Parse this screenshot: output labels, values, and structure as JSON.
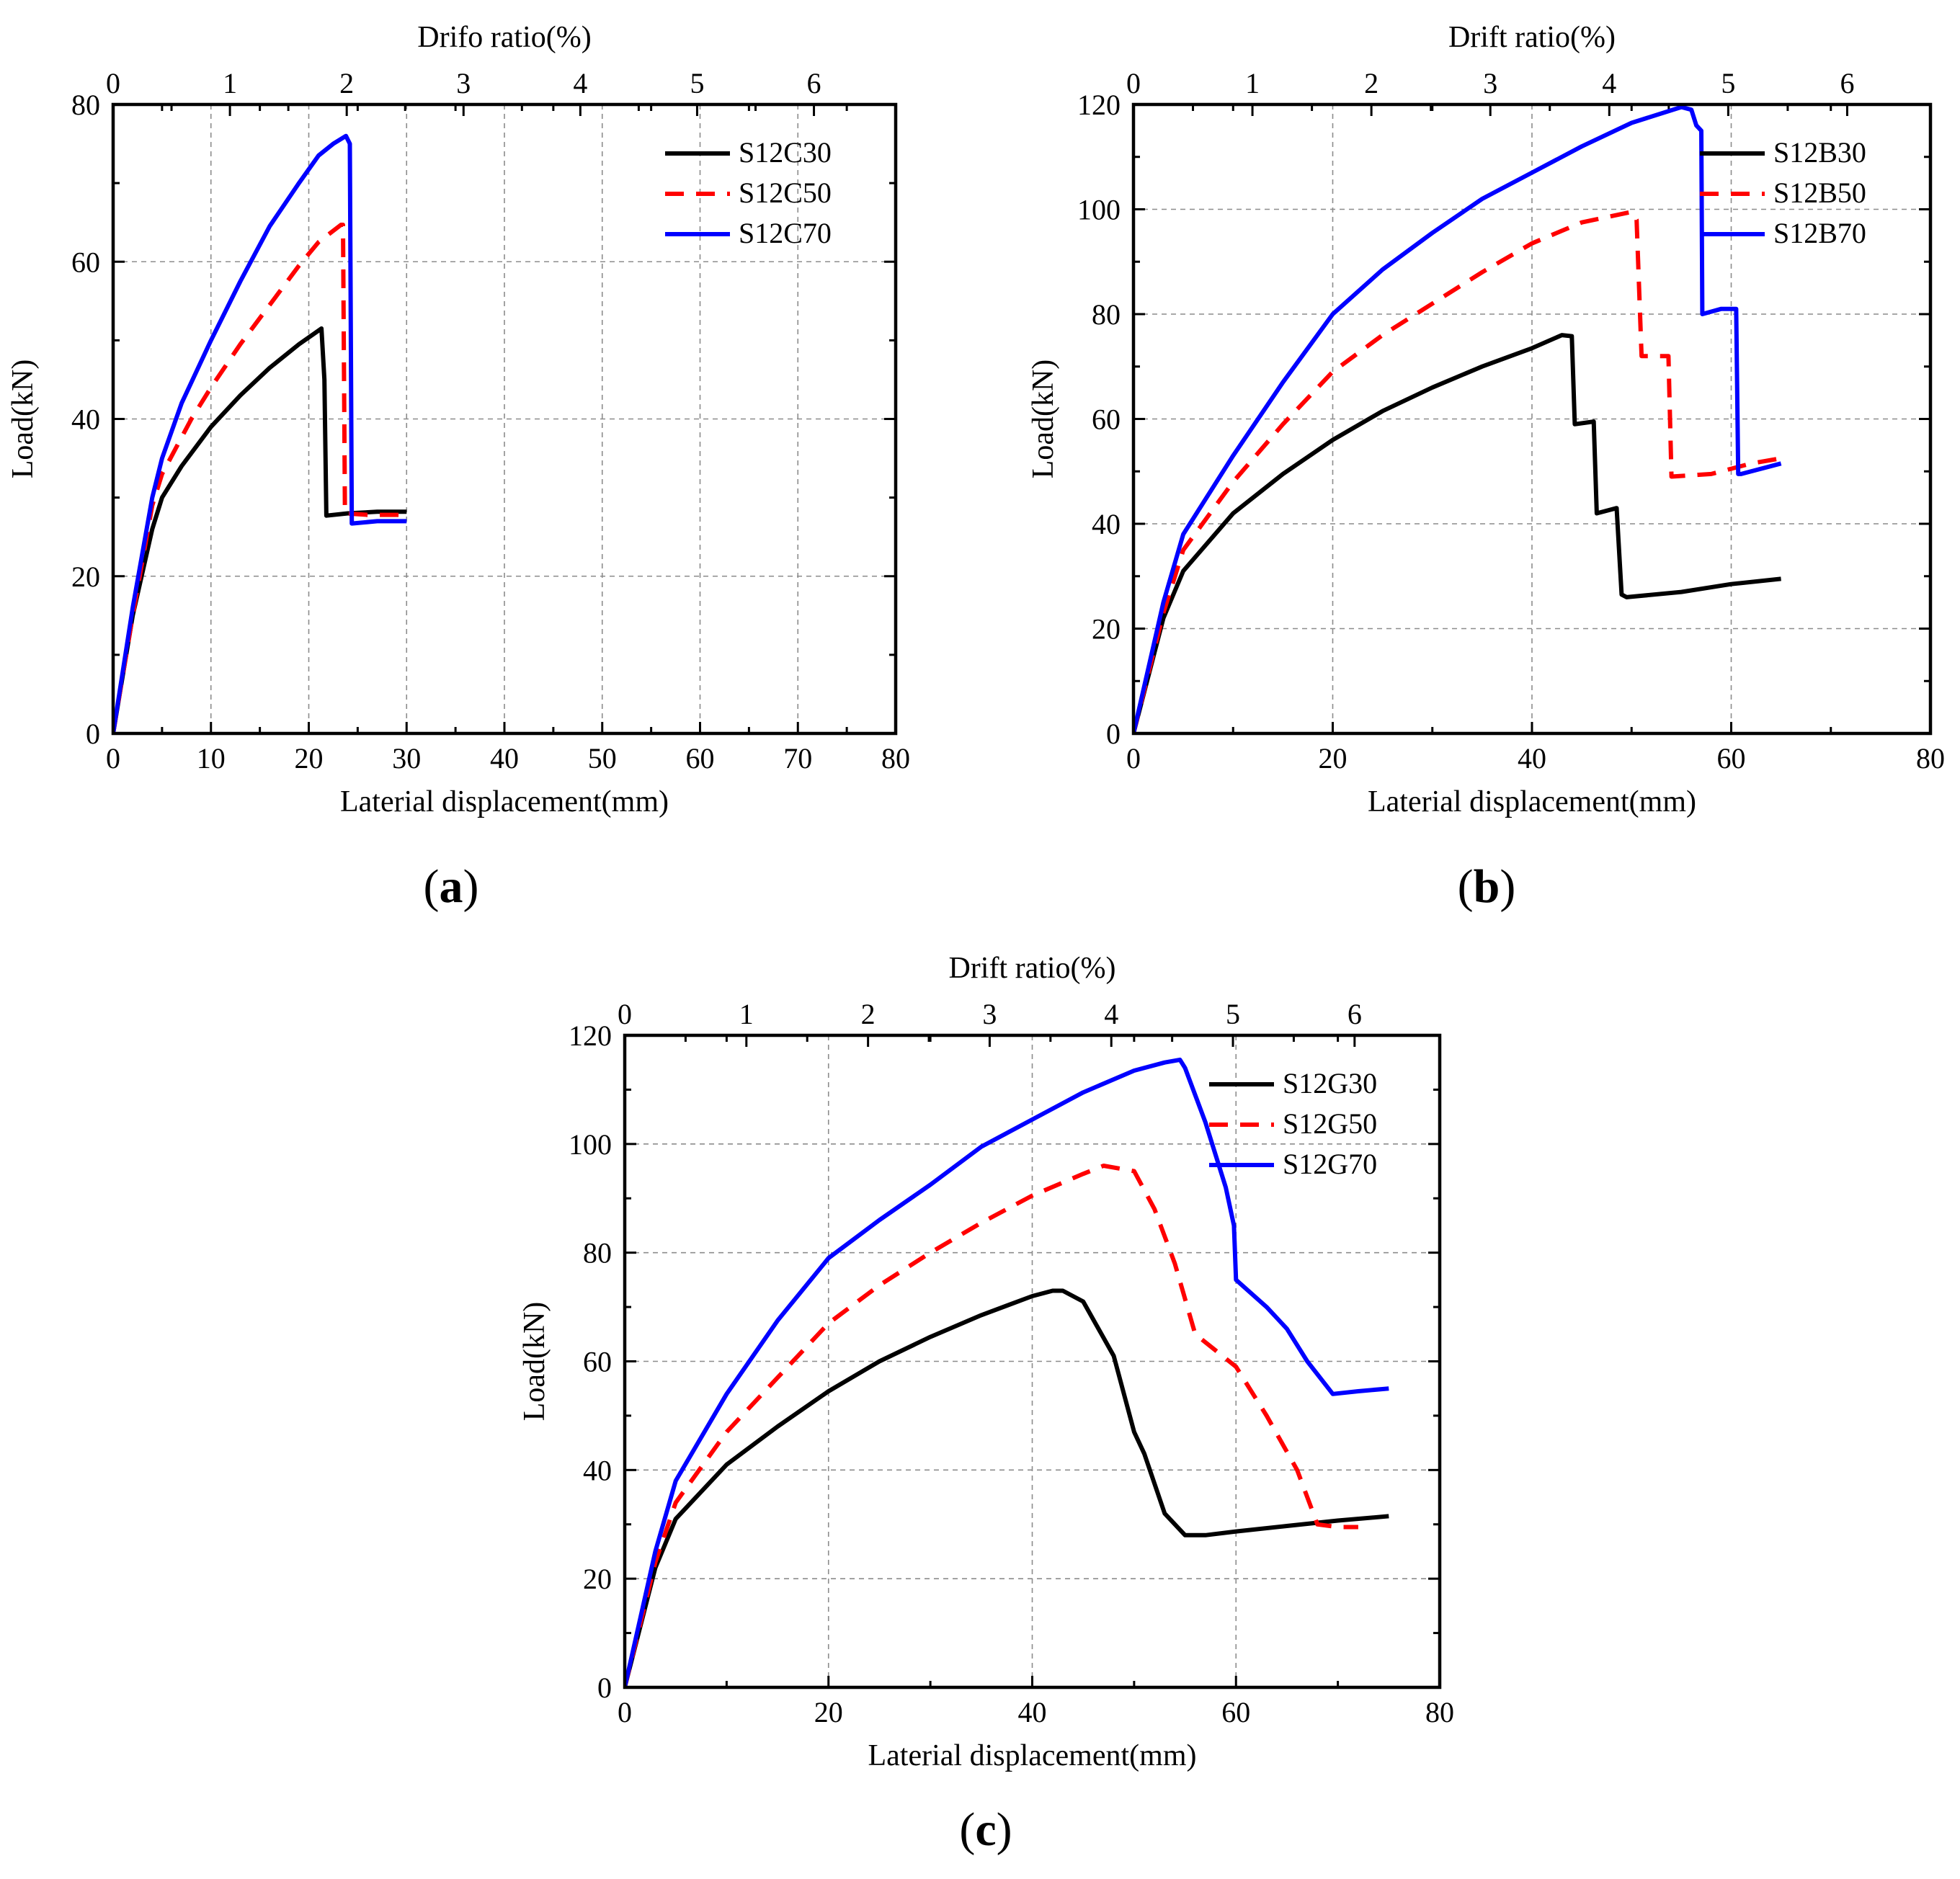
{
  "chart_data": [
    {
      "type": "line",
      "id": "a",
      "panel_label": "a",
      "title": "",
      "top_xlabel": "Drifo ratio(%)",
      "xlabel": "Laterial displacement(mm)",
      "ylabel": "Load(kN)",
      "xlim": [
        0,
        80
      ],
      "ylim": [
        0,
        80
      ],
      "xticks": [
        0,
        10,
        20,
        30,
        40,
        50,
        60,
        70,
        80
      ],
      "yticks": [
        0,
        20,
        40,
        60,
        80
      ],
      "top_xlim": [
        0,
        6.7
      ],
      "top_xticks": [
        0,
        1,
        2,
        3,
        4,
        5,
        6
      ],
      "grid": true,
      "legend_position": "top-right",
      "series": [
        {
          "name": "S12C30",
          "color": "#000000",
          "dash": "solid",
          "x": [
            0,
            2,
            4,
            5,
            7,
            10,
            13,
            16,
            19,
            21.3,
            21.6,
            21.8,
            24,
            27,
            30
          ],
          "y": [
            0,
            15,
            26,
            30,
            34,
            39,
            43,
            46.5,
            49.5,
            51.5,
            45,
            27.7,
            28,
            28.2,
            28.2
          ]
        },
        {
          "name": "S12C50",
          "color": "#ff0000",
          "dash": "dashed",
          "x": [
            0,
            2,
            4,
            5,
            8,
            10,
            13,
            16,
            19,
            21,
            23.3,
            23.5,
            23.7,
            26,
            30
          ],
          "y": [
            0,
            15,
            29,
            33,
            40,
            44,
            49.5,
            54.5,
            59.5,
            62.5,
            64.7,
            64.7,
            28,
            27.8,
            27.8
          ]
        },
        {
          "name": "S12C70",
          "color": "#0000ff",
          "dash": "solid",
          "x": [
            0,
            2,
            4,
            5,
            7,
            10,
            13,
            16,
            19,
            21,
            22.5,
            23.8,
            24.2,
            24.4,
            27,
            30
          ],
          "y": [
            0,
            16,
            30,
            35,
            42,
            50,
            57.5,
            64.5,
            70,
            73.5,
            75,
            76,
            75,
            26.7,
            27,
            27
          ]
        }
      ]
    },
    {
      "type": "line",
      "id": "b",
      "panel_label": "b",
      "title": "",
      "top_xlabel": "Drift ratio(%)",
      "xlabel": "Laterial displacement(mm)",
      "ylabel": "Load(kN)",
      "xlim": [
        0,
        80
      ],
      "ylim": [
        0,
        120
      ],
      "xticks": [
        0,
        20,
        40,
        60,
        80
      ],
      "yticks": [
        0,
        20,
        40,
        60,
        80,
        100,
        120
      ],
      "top_xlim": [
        0,
        6.7
      ],
      "top_xticks": [
        0,
        1,
        2,
        3,
        4,
        5,
        6
      ],
      "grid": true,
      "legend_position": "top-right",
      "series": [
        {
          "name": "S12B30",
          "color": "#000000",
          "dash": "solid",
          "x": [
            0,
            3,
            5,
            10,
            15,
            20,
            25,
            30,
            35,
            40,
            43,
            44,
            44.3,
            46.2,
            46.5,
            48.5,
            49,
            49.5,
            55,
            60,
            65
          ],
          "y": [
            0,
            22,
            31,
            42,
            49.5,
            56,
            61.5,
            66,
            70,
            73.5,
            76,
            75.8,
            59,
            59.5,
            42,
            43,
            26.5,
            26,
            27,
            28.5,
            29.5
          ]
        },
        {
          "name": "S12B50",
          "color": "#ff0000",
          "dash": "dashed",
          "x": [
            0,
            3,
            5,
            10,
            15,
            20,
            25,
            30,
            35,
            40,
            45,
            50,
            50.5,
            51,
            53,
            53.7,
            54,
            58,
            62,
            65
          ],
          "y": [
            0,
            23,
            35,
            48,
            59,
            69,
            76,
            82,
            88,
            93.5,
            97.5,
            99.5,
            98,
            72,
            72,
            72,
            49,
            49.5,
            51.5,
            52.5
          ]
        },
        {
          "name": "S12B70",
          "color": "#0000ff",
          "dash": "solid",
          "x": [
            0,
            3,
            5,
            10,
            15,
            20,
            25,
            30,
            35,
            40,
            45,
            50,
            55,
            56,
            56.5,
            57,
            57.1,
            59,
            60.5,
            60.7,
            61,
            65
          ],
          "y": [
            0,
            25,
            38,
            53,
            67,
            80,
            88.5,
            95.5,
            102,
            107,
            112,
            116.5,
            119.5,
            119,
            116,
            115,
            80,
            81,
            81,
            49.5,
            49.5,
            51.5
          ]
        }
      ]
    },
    {
      "type": "line",
      "id": "c",
      "panel_label": "c",
      "title": "",
      "top_xlabel": "Drift ratio(%)",
      "xlabel": "Laterial displacement(mm)",
      "ylabel": "Load(kN)",
      "xlim": [
        0,
        80
      ],
      "ylim": [
        0,
        120
      ],
      "xticks": [
        0,
        20,
        40,
        60,
        80
      ],
      "yticks": [
        0,
        20,
        40,
        60,
        80,
        100,
        120
      ],
      "top_xlim": [
        0,
        6.7
      ],
      "top_xticks": [
        0,
        1,
        2,
        3,
        4,
        5,
        6
      ],
      "grid": true,
      "legend_position": "top-right",
      "series": [
        {
          "name": "S12G30",
          "color": "#000000",
          "dash": "solid",
          "x": [
            0,
            3,
            5,
            10,
            15,
            20,
            25,
            30,
            35,
            40,
            42,
            43,
            45,
            48,
            50,
            51,
            53,
            55,
            57,
            60,
            65,
            70,
            75
          ],
          "y": [
            0,
            22,
            31,
            41,
            48,
            54.5,
            60,
            64.5,
            68.5,
            72,
            73,
            73,
            71,
            61,
            47,
            43,
            32,
            28,
            28,
            28.7,
            29.7,
            30.7,
            31.5
          ]
        },
        {
          "name": "S12G50",
          "color": "#ff0000",
          "dash": "dashed",
          "x": [
            0,
            3,
            5,
            10,
            15,
            20,
            25,
            30,
            35,
            40,
            45,
            47,
            50,
            52,
            54,
            56,
            58,
            60,
            63,
            66,
            68,
            70,
            72
          ],
          "y": [
            0,
            23,
            34,
            47,
            57,
            67,
            74,
            80,
            85.5,
            90.5,
            94.5,
            96,
            95,
            88,
            78,
            65,
            62,
            59,
            50,
            40,
            30,
            29.5,
            29.5
          ]
        },
        {
          "name": "S12G70",
          "color": "#0000ff",
          "dash": "solid",
          "x": [
            0,
            3,
            5,
            10,
            15,
            20,
            22.5,
            25,
            30,
            35,
            40,
            45,
            50,
            53,
            54.5,
            55,
            57,
            59,
            59.8,
            60,
            63,
            65,
            67,
            69.5,
            72,
            75
          ],
          "y": [
            0,
            25,
            38,
            54,
            67.5,
            79,
            82.5,
            86,
            92.5,
            99.5,
            104.5,
            109.5,
            113.5,
            115,
            115.5,
            114,
            104,
            92,
            85,
            75,
            70,
            66,
            60,
            54,
            54.5,
            55
          ]
        }
      ]
    }
  ]
}
